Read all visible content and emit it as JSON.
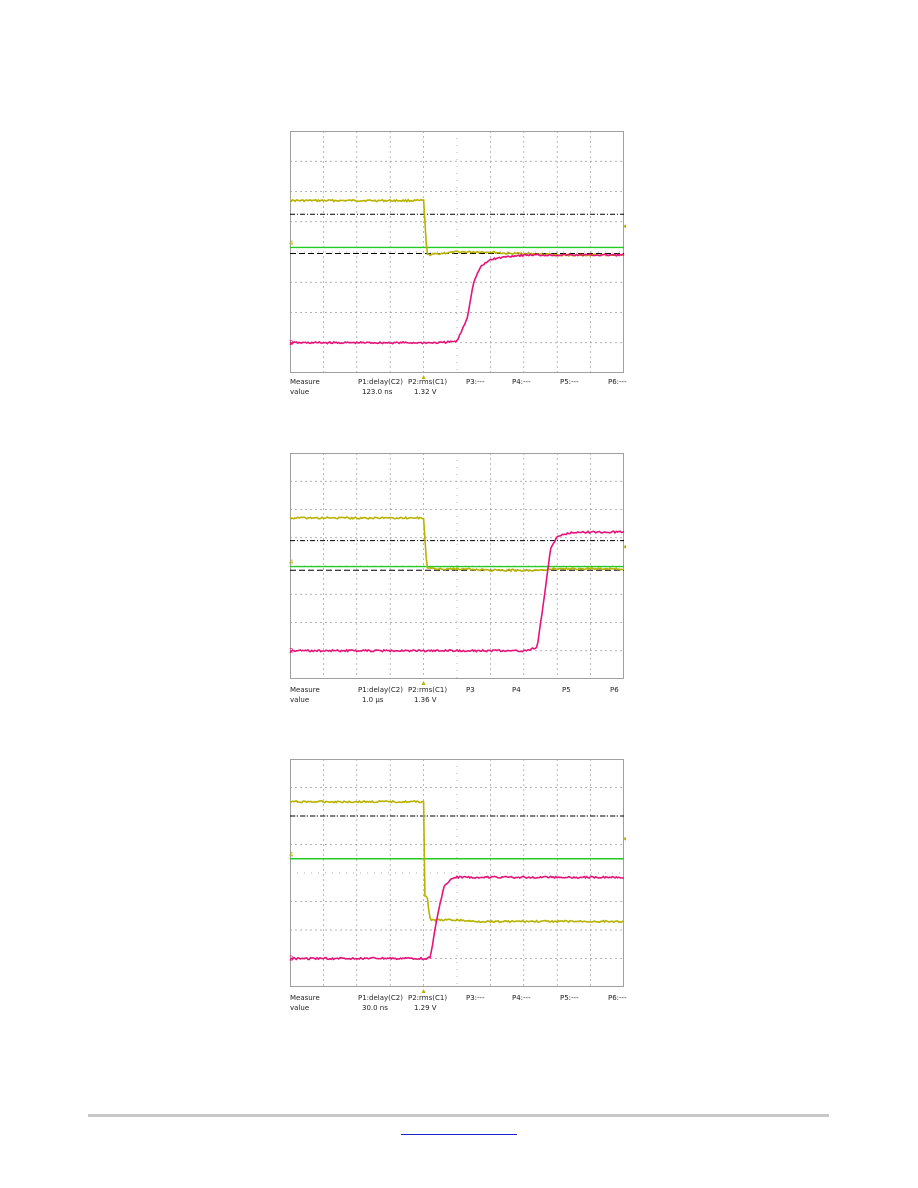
{
  "colors": {
    "ch1": "#b8b200",
    "ch2": "#e4147a",
    "ref": "#22cc22",
    "grid": "#9a9a9a",
    "frame": "#a0a0a0",
    "cursor": "#000000",
    "link": "#2222cc",
    "rule": "#c8c8c8"
  },
  "chart_data": [
    {
      "type": "line",
      "grid": true,
      "x_divisions": 10,
      "y_divisions": 8,
      "x": [
        -5.0,
        -1.0,
        -0.9,
        -0.5,
        0.0,
        0.3,
        0.5,
        0.7,
        1.0,
        1.5,
        2.0,
        3.0,
        5.0
      ],
      "series": [
        {
          "id": "ch1",
          "values": [
            5.7,
            5.7,
            3.9,
            3.95,
            4.0,
            4.0,
            4.0,
            4.0,
            4.0,
            3.95,
            3.95,
            3.9,
            3.9
          ]
        },
        {
          "id": "ch2",
          "values": [
            1.0,
            1.0,
            1.0,
            1.0,
            1.05,
            1.8,
            3.0,
            3.5,
            3.75,
            3.85,
            3.9,
            3.9,
            3.9
          ]
        }
      ],
      "reference_level": 4.15,
      "cursor_levels": [
        5.25,
        3.95
      ],
      "channel_markers": [
        "4",
        "2"
      ],
      "measurements": {
        "headers": [
          "Measure",
          "P1:delay(C2)",
          "P2:rms(C1)",
          "P3:---",
          "P4:---",
          "P5:---",
          "P6:---"
        ],
        "values": [
          "value",
          "123.0 ns",
          "1.32 V",
          "",
          "",
          "",
          ""
        ]
      }
    },
    {
      "type": "line",
      "grid": true,
      "x_divisions": 10,
      "y_divisions": 8,
      "x": [
        -5.0,
        -1.0,
        -0.9,
        0.0,
        1.0,
        2.0,
        2.4,
        2.6,
        2.8,
        3.0,
        3.5,
        5.0
      ],
      "series": [
        {
          "id": "ch1",
          "values": [
            5.7,
            5.7,
            3.9,
            3.9,
            3.85,
            3.85,
            3.85,
            3.85,
            3.9,
            3.9,
            3.9,
            3.9
          ]
        },
        {
          "id": "ch2",
          "values": [
            1.0,
            1.0,
            1.0,
            1.0,
            1.0,
            1.0,
            1.1,
            2.8,
            4.6,
            5.05,
            5.2,
            5.2
          ]
        }
      ],
      "reference_level": 3.98,
      "cursor_levels": [
        4.9,
        3.85
      ],
      "channel_markers": [
        "4",
        "2"
      ],
      "measurements": {
        "headers": [
          "Measure",
          "P1:delay(C2)",
          "P2:rms(C1)",
          "P3",
          "P4",
          "P5",
          "P6"
        ],
        "values": [
          "value",
          "1.0 µs",
          "1.36 V",
          "",
          "",
          "",
          ""
        ]
      }
    },
    {
      "type": "line",
      "grid": true,
      "x_divisions": 10,
      "y_divisions": 8,
      "x": [
        -5.0,
        -1.0,
        -1.0,
        -0.9,
        -0.8,
        -0.6,
        -0.4,
        -0.2,
        0.0,
        0.5,
        1.0,
        5.0
      ],
      "series": [
        {
          "id": "ch1",
          "values": [
            6.5,
            6.5,
            3.2,
            3.2,
            2.35,
            2.35,
            2.35,
            2.35,
            2.35,
            2.3,
            2.3,
            2.3
          ]
        },
        {
          "id": "ch2",
          "values": [
            1.0,
            1.0,
            1.0,
            1.0,
            1.05,
            2.4,
            3.5,
            3.75,
            3.85,
            3.85,
            3.85,
            3.85
          ]
        }
      ],
      "reference_level": 4.5,
      "cursor_levels": [
        6.0,
        null
      ],
      "channel_markers": [
        "4",
        "2"
      ],
      "measurements": {
        "headers": [
          "Measure",
          "P1:delay(C2)",
          "P2:rms(C1)",
          "P3:---",
          "P4:---",
          "P5:---",
          "P6:---"
        ],
        "values": [
          "value",
          "30.0 ns",
          "1.29 V",
          "",
          "",
          "",
          ""
        ]
      }
    }
  ]
}
